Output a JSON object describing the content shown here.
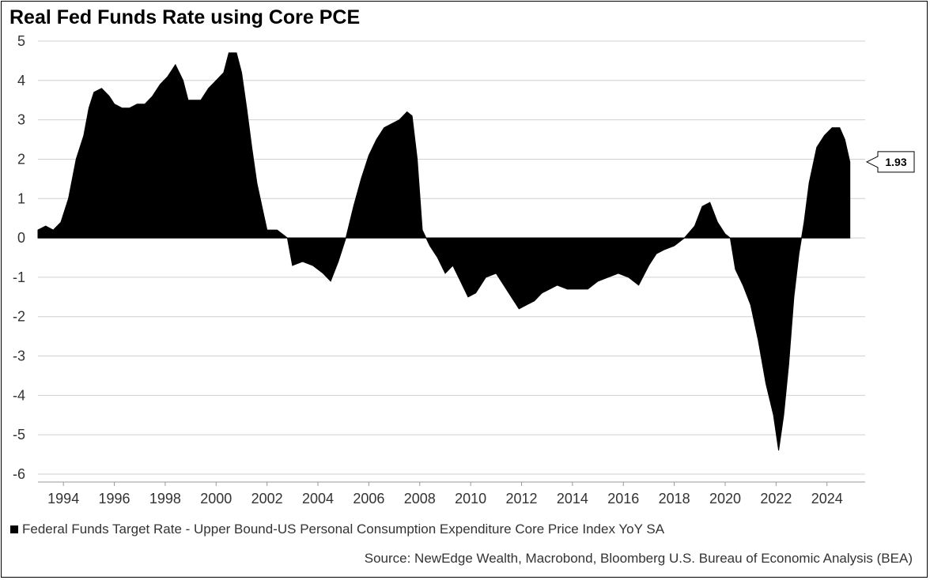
{
  "chart_data": {
    "type": "area",
    "title": "Real Fed Funds Rate using Core PCE",
    "xlabel": "",
    "ylabel": "",
    "xlim": [
      1993.0,
      2025.5
    ],
    "ylim": [
      -6.2,
      5.2
    ],
    "y_ticks": [
      5,
      4,
      3,
      2,
      1,
      0,
      -1,
      -2,
      -3,
      -4,
      -5,
      -6
    ],
    "x_ticks": [
      1994,
      1996,
      1998,
      2000,
      2002,
      2004,
      2006,
      2008,
      2010,
      2012,
      2014,
      2016,
      2018,
      2020,
      2022,
      2024
    ],
    "grid": "horizontal",
    "fill_color": "#000000",
    "grid_color": "#d0d0d0",
    "series": [
      {
        "name": "Federal Funds Target Rate - Upper Bound-US Personal Consumption Expenditure Core Price Index YoY SA",
        "x": [
          1993.0,
          1993.3,
          1993.6,
          1993.9,
          1994.2,
          1994.5,
          1994.8,
          1995.0,
          1995.2,
          1995.5,
          1995.8,
          1996.0,
          1996.3,
          1996.6,
          1996.9,
          1997.2,
          1997.5,
          1997.8,
          1998.1,
          1998.4,
          1998.7,
          1998.9,
          1999.1,
          1999.4,
          1999.7,
          2000.0,
          2000.3,
          2000.5,
          2000.8,
          2001.0,
          2001.2,
          2001.4,
          2001.6,
          2001.8,
          2002.0,
          2002.4,
          2002.8,
          2003.0,
          2003.4,
          2003.8,
          2004.2,
          2004.5,
          2004.8,
          2005.1,
          2005.4,
          2005.7,
          2006.0,
          2006.3,
          2006.6,
          2006.9,
          2007.2,
          2007.5,
          2007.7,
          2007.9,
          2008.1,
          2008.4,
          2008.7,
          2009.0,
          2009.3,
          2009.6,
          2009.9,
          2010.2,
          2010.6,
          2011.0,
          2011.3,
          2011.6,
          2011.9,
          2012.2,
          2012.5,
          2012.8,
          2013.1,
          2013.4,
          2013.8,
          2014.2,
          2014.6,
          2015.0,
          2015.4,
          2015.8,
          2016.2,
          2016.6,
          2017.0,
          2017.3,
          2017.6,
          2018.0,
          2018.4,
          2018.8,
          2019.1,
          2019.4,
          2019.7,
          2020.0,
          2020.2,
          2020.4,
          2020.7,
          2021.0,
          2021.3,
          2021.6,
          2021.9,
          2022.1,
          2022.3,
          2022.5,
          2022.7,
          2022.9,
          2023.1,
          2023.3,
          2023.6,
          2023.9,
          2024.2,
          2024.5,
          2024.7,
          2024.9
        ],
        "y": [
          0.2,
          0.3,
          0.2,
          0.4,
          1.0,
          2.0,
          2.6,
          3.3,
          3.7,
          3.8,
          3.6,
          3.4,
          3.3,
          3.3,
          3.4,
          3.4,
          3.6,
          3.9,
          4.1,
          4.4,
          4.0,
          3.5,
          3.5,
          3.5,
          3.8,
          4.0,
          4.2,
          4.7,
          4.7,
          4.2,
          3.3,
          2.3,
          1.4,
          0.8,
          0.2,
          0.2,
          0.0,
          -0.7,
          -0.6,
          -0.7,
          -0.9,
          -1.1,
          -0.6,
          0.0,
          0.8,
          1.5,
          2.1,
          2.5,
          2.8,
          2.9,
          3.0,
          3.2,
          3.1,
          2.0,
          0.2,
          -0.2,
          -0.5,
          -0.9,
          -0.7,
          -1.1,
          -1.5,
          -1.4,
          -1.0,
          -0.9,
          -1.2,
          -1.5,
          -1.8,
          -1.7,
          -1.6,
          -1.4,
          -1.3,
          -1.2,
          -1.3,
          -1.3,
          -1.3,
          -1.1,
          -1.0,
          -0.9,
          -1.0,
          -1.2,
          -0.7,
          -0.4,
          -0.3,
          -0.2,
          0.0,
          0.3,
          0.8,
          0.9,
          0.4,
          0.1,
          0.0,
          -0.8,
          -1.2,
          -1.7,
          -2.6,
          -3.7,
          -4.5,
          -5.4,
          -4.5,
          -3.2,
          -1.5,
          -0.4,
          0.4,
          1.4,
          2.3,
          2.6,
          2.8,
          2.8,
          2.5,
          1.93
        ]
      }
    ],
    "callout": {
      "value": "1.93"
    },
    "legend": "Federal Funds Target Rate - Upper Bound-US Personal Consumption Expenditure Core Price Index YoY SA",
    "legend_position": "bottom-left",
    "source": "Source: NewEdge Wealth, Macrobond, Bloomberg U.S. Bureau of Economic Analysis (BEA)"
  }
}
